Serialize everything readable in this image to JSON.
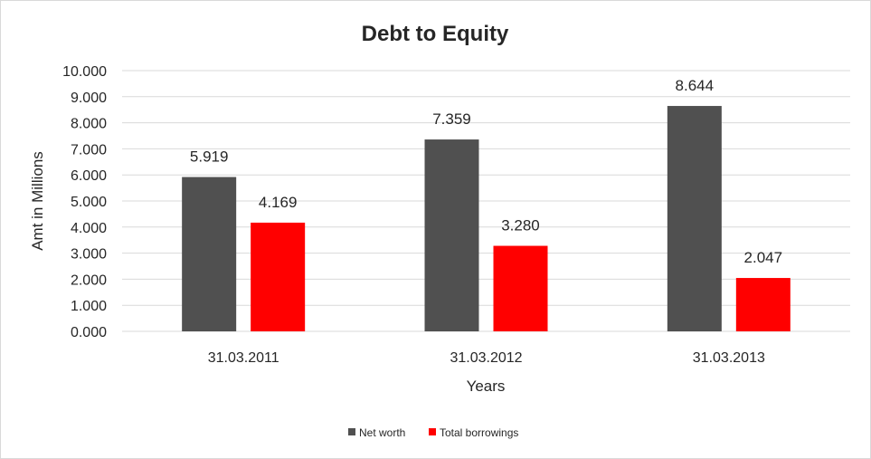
{
  "chart_data": {
    "type": "bar",
    "title": "Debt to Equity",
    "xlabel": "Years",
    "ylabel": "Amt in Millions",
    "categories": [
      "31.03.2011",
      "31.03.2012",
      "31.03.2013"
    ],
    "series": [
      {
        "name": "Net worth",
        "values": [
          5.919,
          7.359,
          8.644
        ],
        "labels": [
          "5.919",
          "7.359",
          "8.644"
        ],
        "color": "#505050"
      },
      {
        "name": "Total borrowings",
        "values": [
          4.169,
          3.28,
          2.047
        ],
        "labels": [
          "4.169",
          "3.280",
          "2.047"
        ],
        "color": "#ff0000"
      }
    ],
    "ylim": [
      0,
      10
    ],
    "yticks": [
      0,
      1,
      2,
      3,
      4,
      5,
      6,
      7,
      8,
      9,
      10
    ],
    "ytick_labels": [
      "0.000",
      "1.000",
      "2.000",
      "3.000",
      "4.000",
      "5.000",
      "6.000",
      "7.000",
      "8.000",
      "9.000",
      "10.000"
    ],
    "grid": true,
    "legend_position": "bottom"
  }
}
